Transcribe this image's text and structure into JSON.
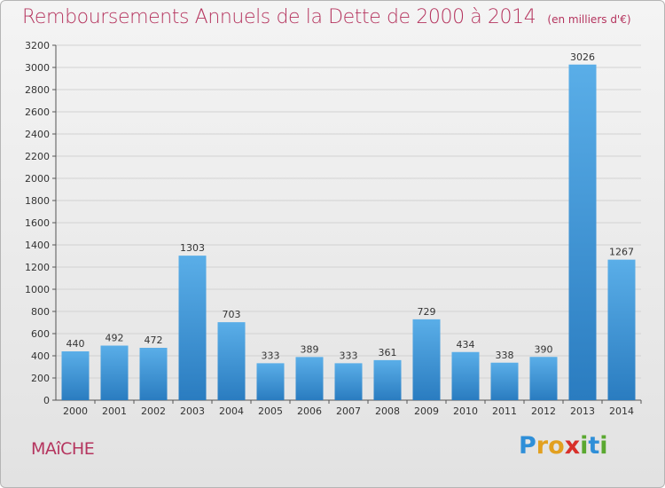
{
  "header": {
    "title": "Remboursements Annuels de la Dette de 2000 à 2014",
    "unit": "(en milliers d'€)"
  },
  "footer": {
    "commune": "MAîCHE",
    "logo": "Proxiti",
    "logo_letters": [
      {
        "ch": "P",
        "color": "#2f8fd8"
      },
      {
        "ch": "r",
        "color": "#e2a020"
      },
      {
        "ch": "o",
        "color": "#e2a020"
      },
      {
        "ch": "x",
        "color": "#d8302a"
      },
      {
        "ch": "i",
        "color": "#5aa830"
      },
      {
        "ch": "t",
        "color": "#2f8fd8"
      },
      {
        "ch": "i",
        "color": "#5aa830"
      }
    ]
  },
  "chart_data": {
    "type": "bar",
    "categories": [
      "2000",
      "2001",
      "2002",
      "2003",
      "2004",
      "2005",
      "2006",
      "2007",
      "2008",
      "2009",
      "2010",
      "2011",
      "2012",
      "2013",
      "2014"
    ],
    "values": [
      440,
      492,
      472,
      1303,
      703,
      333,
      389,
      333,
      361,
      729,
      434,
      338,
      390,
      3026,
      1267
    ],
    "ylim": [
      0,
      3200
    ],
    "yticks": [
      0,
      200,
      400,
      600,
      800,
      1000,
      1200,
      1400,
      1600,
      1800,
      2000,
      2200,
      2400,
      2600,
      2800,
      3000,
      3200
    ],
    "grid": true,
    "bar_color_top": "#5aaee8",
    "bar_color_bottom": "#2a7cc0"
  }
}
